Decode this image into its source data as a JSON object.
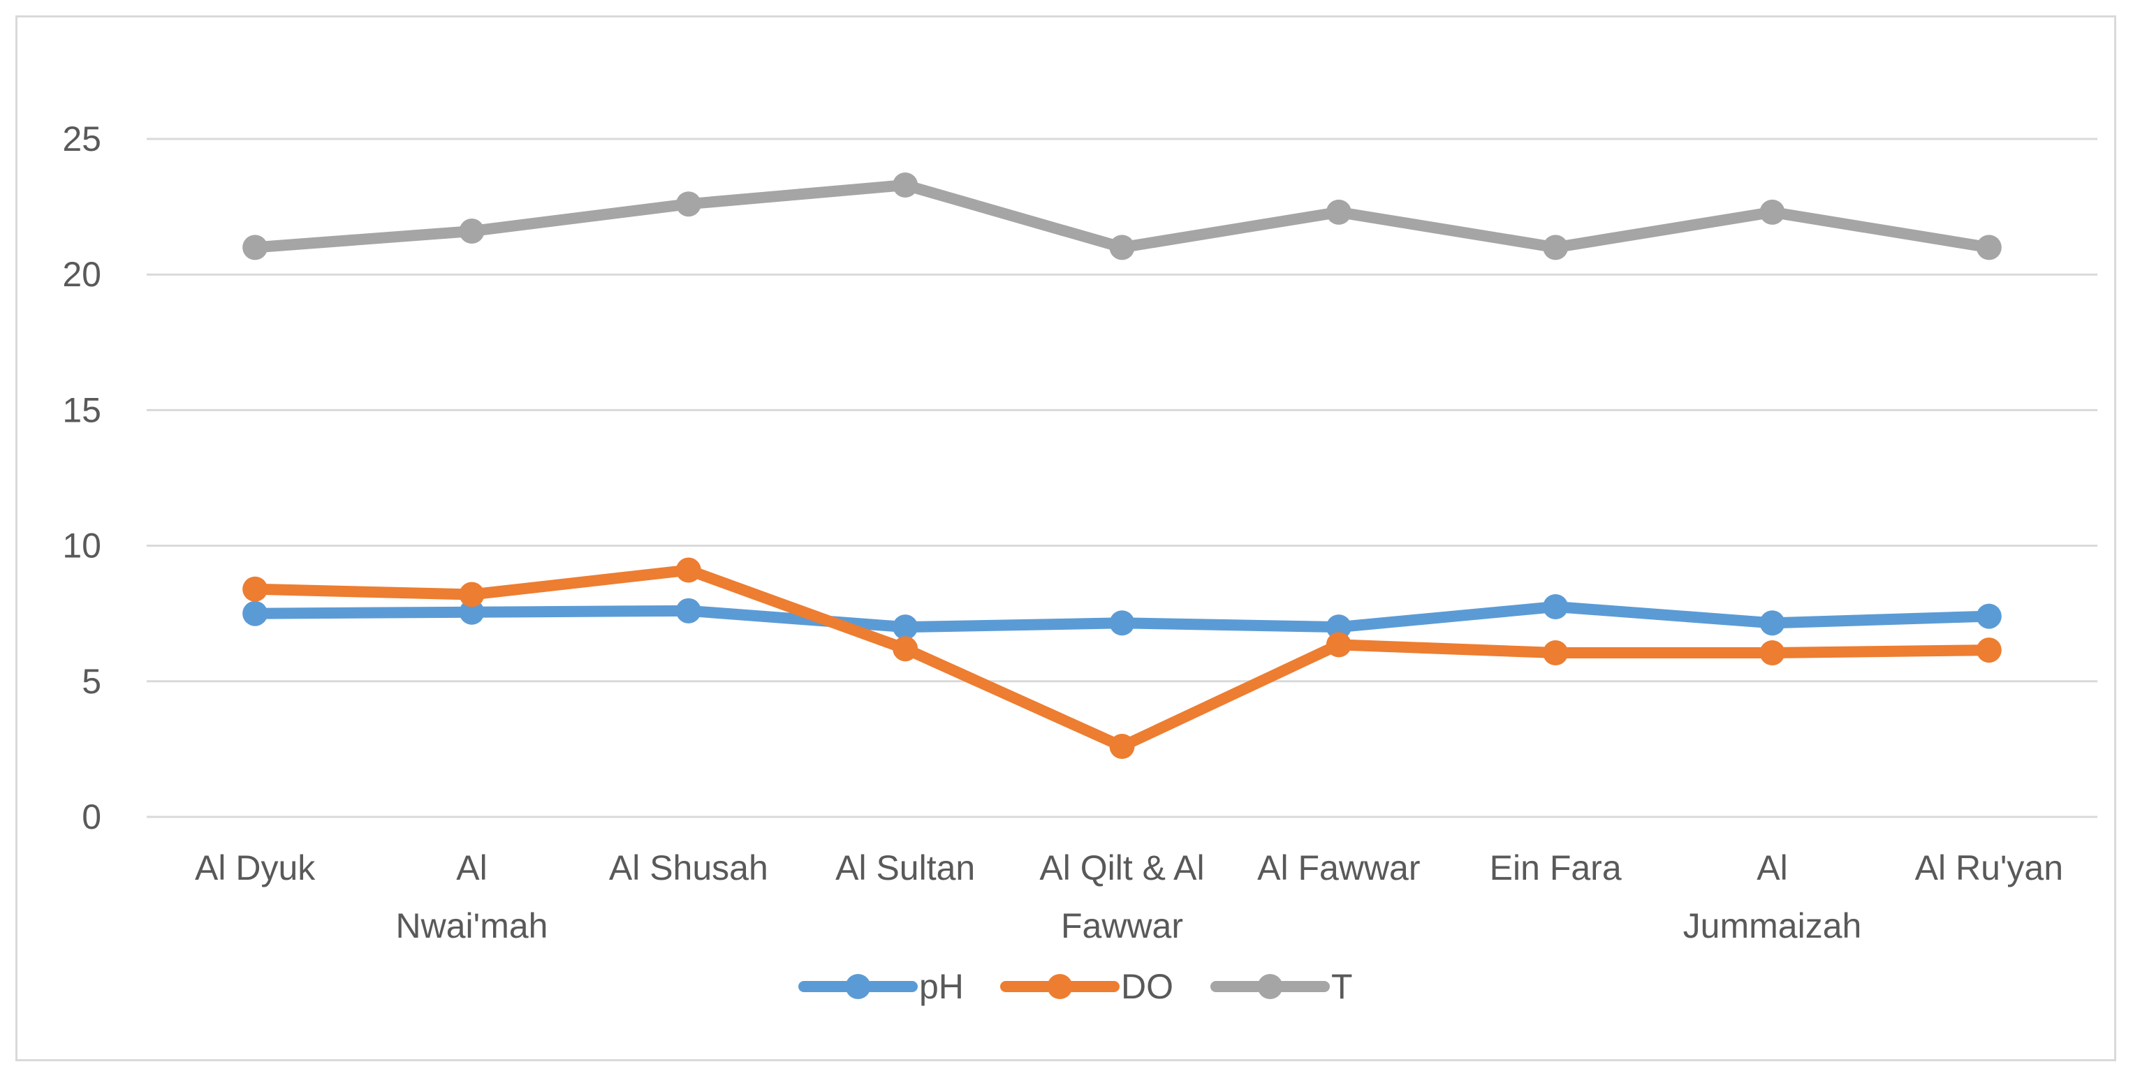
{
  "chart_data": {
    "type": "line",
    "title": "",
    "xlabel": "",
    "ylabel": "",
    "categories": [
      [
        "Al Dyuk"
      ],
      [
        "Al",
        "Nwai'mah"
      ],
      [
        "Al Shusah"
      ],
      [
        "Al Sultan"
      ],
      [
        "Al Qilt & Al",
        "Fawwar"
      ],
      [
        "Al Fawwar"
      ],
      [
        "Ein Fara"
      ],
      [
        "Al",
        "Jummaizah"
      ],
      [
        "Al Ru'yan"
      ]
    ],
    "series": [
      {
        "name": "pH",
        "color": "#5b9bd5",
        "values": [
          7.5,
          7.55,
          7.6,
          7.0,
          7.15,
          7.0,
          7.75,
          7.15,
          7.4
        ]
      },
      {
        "name": "DO",
        "color": "#ed7d31",
        "values": [
          8.4,
          8.2,
          9.1,
          6.2,
          2.6,
          6.35,
          6.05,
          6.05,
          6.15
        ]
      },
      {
        "name": "T",
        "color": "#a5a5a5",
        "values": [
          21.0,
          21.6,
          22.6,
          23.3,
          21.0,
          22.3,
          21.0,
          22.3,
          21.0
        ]
      }
    ],
    "ylim": [
      0,
      25
    ],
    "yticks": [
      0,
      5,
      10,
      15,
      20,
      25
    ],
    "grid": true,
    "legend_position": "bottom"
  }
}
